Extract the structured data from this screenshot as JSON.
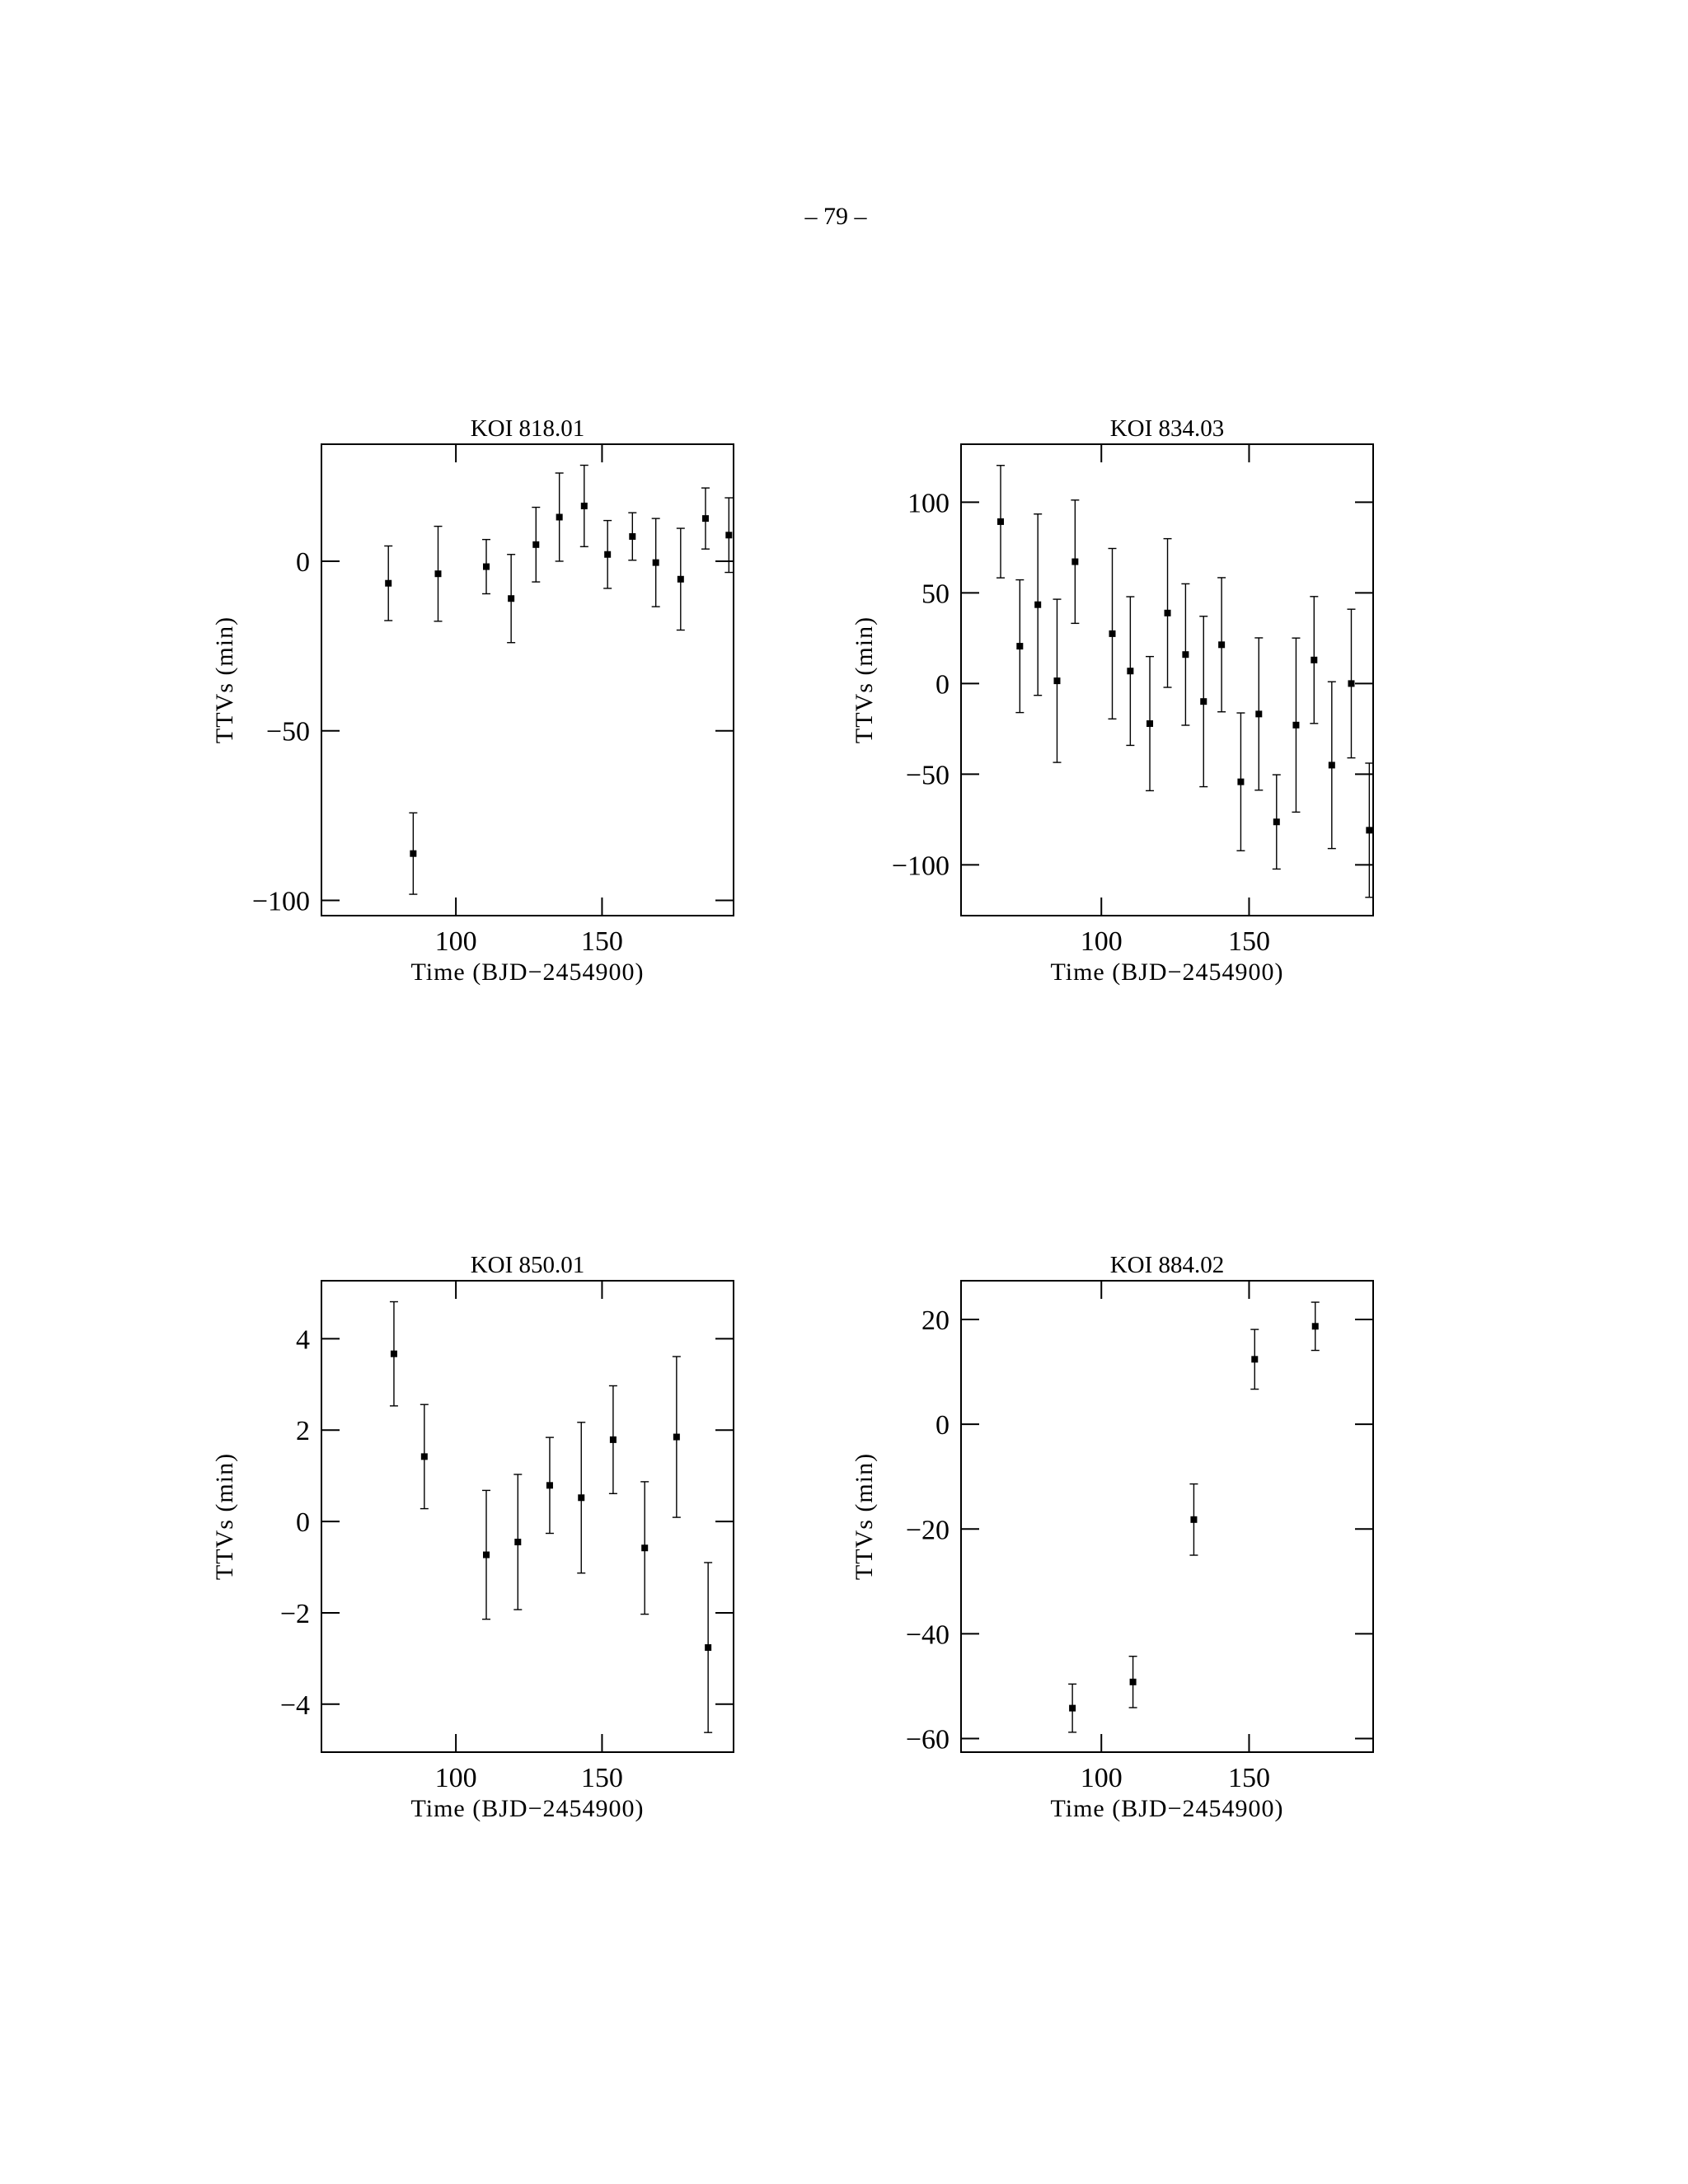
{
  "page_number": "– 79 –",
  "chart_data": [
    {
      "type": "scatter",
      "title": "KOI 818.01",
      "x_label": "Time (BJD−2454900)",
      "y_label": "TTVs (min)",
      "xlim": [
        54,
        195
      ],
      "xticks": [
        100,
        150
      ],
      "ylim": [
        -104.5,
        34.5
      ],
      "yticks": [
        {
          "value": -100,
          "label": "−100"
        },
        {
          "value": -50,
          "label": "−50"
        },
        0
      ],
      "x": [
        76.9,
        85.4,
        93.9,
        110.4,
        118.9,
        127.4,
        135.4,
        143.9,
        151.9,
        160.4,
        168.4,
        176.9,
        185.4,
        193.4
      ],
      "values": [
        -6.5,
        -86.2,
        -3.7,
        -1.6,
        -11,
        4.9,
        13,
        16.3,
        2,
        7.3,
        -0.4,
        -5.3,
        12.6,
        7.7
      ],
      "errors": [
        11,
        12,
        14,
        8,
        13,
        11,
        13,
        12,
        10,
        7,
        13,
        15,
        9,
        11
      ],
      "color": "#000000"
    },
    {
      "type": "scatter",
      "title": "KOI 834.03",
      "x_label": "Time (BJD−2454900)",
      "y_label": "TTVs (min)",
      "xlim": [
        52.5,
        192
      ],
      "xticks": [
        100,
        150
      ],
      "ylim": [
        -128,
        132
      ],
      "yticks": [
        {
          "value": -100,
          "label": "−100"
        },
        {
          "value": -50,
          "label": "−50"
        },
        0,
        50,
        100
      ],
      "x": [
        65.9,
        72.4,
        78.5,
        85,
        91.1,
        103.7,
        109.8,
        116.4,
        122.4,
        128.5,
        134.6,
        140.7,
        147.2,
        153.3,
        159.3,
        165.9,
        172,
        178,
        184.6,
        190.7
      ],
      "values": [
        89.3,
        20.6,
        43.5,
        1.5,
        67.2,
        27.5,
        6.9,
        -22.1,
        38.9,
        16,
        -9.9,
        21.4,
        -54.2,
        -16.8,
        -76.3,
        -22.9,
        13,
        -45,
        0,
        -80.9
      ],
      "errors": [
        31,
        36.6,
        50,
        45,
        34,
        47,
        41,
        37,
        41,
        39,
        47,
        37,
        38,
        42,
        26,
        48,
        35,
        46,
        41,
        37
      ],
      "color": "#000000"
    },
    {
      "type": "scatter",
      "title": "KOI 850.01",
      "x_label": "Time (BJD−2454900)",
      "y_label": "TTVs (min)",
      "xlim": [
        54,
        195
      ],
      "xticks": [
        100,
        150
      ],
      "ylim": [
        -5.05,
        5.27
      ],
      "yticks": [
        {
          "value": -4,
          "label": "−4"
        },
        {
          "value": -2,
          "label": "−2"
        },
        0,
        2,
        4
      ],
      "x": [
        78.8,
        89.2,
        110.4,
        121.2,
        132.1,
        142.9,
        153.8,
        164.6,
        175.5,
        186.3
      ],
      "values": [
        3.67,
        1.42,
        -0.73,
        -0.45,
        0.79,
        0.52,
        1.79,
        -0.58,
        1.85,
        -2.76
      ],
      "errors": [
        1.14,
        1.14,
        1.41,
        1.48,
        1.05,
        1.65,
        1.18,
        1.45,
        1.76,
        1.86
      ],
      "color": "#000000"
    },
    {
      "type": "scatter",
      "title": "KOI 884.02",
      "x_label": "Time (BJD−2454900)",
      "y_label": "TTVs (min)",
      "xlim": [
        52.5,
        192
      ],
      "xticks": [
        100,
        150
      ],
      "ylim": [
        -62.6,
        27.4
      ],
      "yticks": [
        {
          "value": -60,
          "label": "−60"
        },
        {
          "value": -40,
          "label": "−40"
        },
        {
          "value": -20,
          "label": "−20"
        },
        0,
        20
      ],
      "x": [
        90.2,
        110.7,
        131.3,
        151.9,
        172.4
      ],
      "values": [
        -54.2,
        -49.2,
        -18.2,
        12.4,
        18.7
      ],
      "errors": [
        4.6,
        4.9,
        6.8,
        5.7,
        4.6
      ],
      "color": "#000000"
    }
  ]
}
